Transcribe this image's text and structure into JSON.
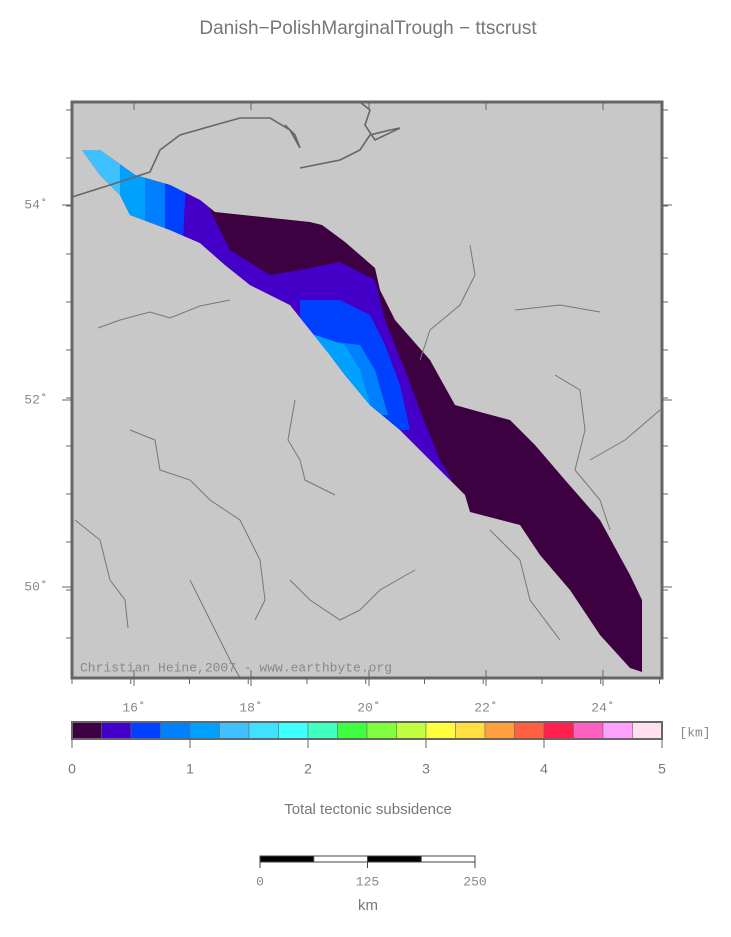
{
  "title": "Danish−PolishMarginalTrough − ttscrust",
  "map": {
    "lon_labels": [
      "16˚",
      "18˚",
      "20˚",
      "22˚",
      "24˚"
    ],
    "lat_labels": [
      "54˚",
      "52˚",
      "50˚"
    ],
    "credit": "Christian Heine,2007 - www.earthbyte.org"
  },
  "colorbar": {
    "colors": [
      "#3d0040",
      "#4400c8",
      "#0040ff",
      "#0080ff",
      "#00a0ff",
      "#40c0ff",
      "#40e0ff",
      "#40ffff",
      "#40ffc0",
      "#40ff40",
      "#80ff40",
      "#c0ff40",
      "#ffff40",
      "#ffe040",
      "#ffa040",
      "#ff6040",
      "#ff2050",
      "#ff60c0",
      "#ffa0ff",
      "#ffe0f0"
    ],
    "ticks": [
      0,
      1,
      2,
      3,
      4,
      5
    ],
    "unit": "[km]",
    "label": "Total tectonic subsidence"
  },
  "scalebar": {
    "ticks": [
      0,
      125,
      250
    ],
    "unit": "km"
  }
}
